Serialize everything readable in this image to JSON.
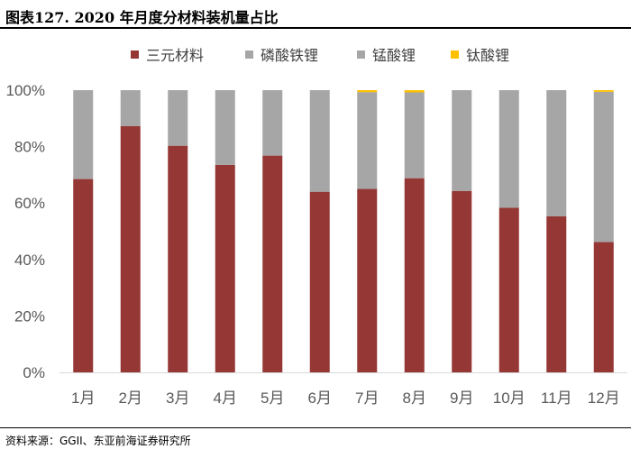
{
  "header": {
    "title": "图表127. 2020 年月度分材料装机量占比"
  },
  "footer": {
    "source": "资料来源：GGII、东亚前海证券研究所"
  },
  "chart_data": {
    "type": "bar",
    "stacked": true,
    "title": "图表127. 2020 年月度分材料装机量占比",
    "categories": [
      "1月",
      "2月",
      "3月",
      "4月",
      "5月",
      "6月",
      "7月",
      "8月",
      "9月",
      "10月",
      "11月",
      "12月"
    ],
    "series": [
      {
        "name": "三元材料",
        "color": "#953735",
        "values": [
          68.5,
          87.3,
          80.3,
          73.5,
          76.8,
          64.0,
          65.0,
          68.8,
          64.3,
          58.3,
          55.3,
          46.2
        ]
      },
      {
        "name": "磷酸铁锂",
        "color": "#a6a6a6",
        "values": [
          31.5,
          12.7,
          19.7,
          26.5,
          23.2,
          36.0,
          34.3,
          30.4,
          35.7,
          41.7,
          44.7,
          53.2
        ]
      },
      {
        "name": "锰酸锂",
        "color": "#a6a6a6",
        "values": [
          0,
          0,
          0,
          0,
          0,
          0,
          0,
          0,
          0,
          0,
          0,
          0
        ]
      },
      {
        "name": "钛酸锂",
        "color": "#ffc000",
        "values": [
          0,
          0,
          0,
          0,
          0,
          0,
          0.7,
          0.8,
          0,
          0,
          0,
          0.6
        ]
      }
    ],
    "yticks": [
      "0%",
      "20%",
      "40%",
      "60%",
      "80%",
      "100%"
    ],
    "ylim": [
      0,
      100
    ],
    "legend": "top",
    "grid": false
  }
}
